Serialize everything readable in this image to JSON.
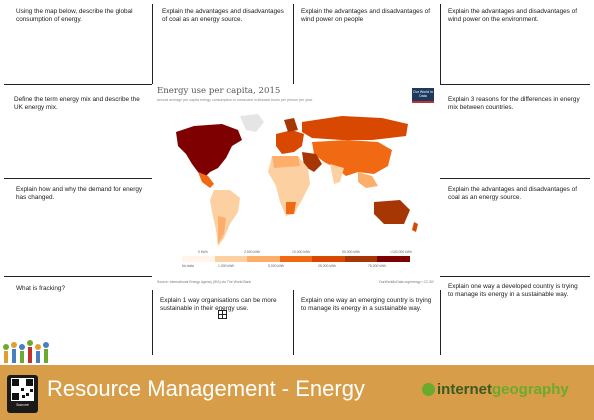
{
  "questions": {
    "q1": "Using the map below, describe the global consumption of energy.",
    "q2": "Explain the advantages and disadvantages of coal as an energy source.",
    "q3": "Explain the advantages and disadvantages of wind power on people",
    "q4": "Explain the advantages and disadvantages of wind power on the environment.",
    "q5": "Define the term energy mix and describe the UK energy mix.",
    "q6": "Explain 3 reasons for the differences in energy mix between countries.",
    "q7": "Explain how and why the demand for energy has changed.",
    "q8": "Explain the advantages and disadvantages of coal as an energy source.",
    "q9": "What is fracking?",
    "q10": "Explain 1 way organisations can be more sustainable in their energy use.",
    "q11": "Explain one way an emerging country is trying to manage its energy in a sustainable way.",
    "q12": "Explain one way a developed country is trying to manage its energy in a sustainable way."
  },
  "map": {
    "title": "Energy use per capita, 2015",
    "subtitle": "Annual average per capita energy consumption is measured in kilowatt-hours per person per year.",
    "logo": "Our World in Data",
    "legend_top": [
      "0 kWh",
      "2,500 kWh",
      "10,000 kWh",
      "50,000 kWh",
      ">100,000 kWh"
    ],
    "legend_bottom": [
      "No data",
      "1,000 kWh",
      "5,000 kWh",
      "25,000 kWh",
      "75,000 kWh"
    ],
    "legend_colors": [
      "#fff5eb",
      "#fdd0a2",
      "#fdae6b",
      "#f16913",
      "#d94801",
      "#a63603",
      "#7f0000"
    ],
    "source_left": "Source: International Energy Agency (IEA) via The World Bank",
    "source_right": "OurWorldInData.org/energy • CC BY"
  },
  "footer": {
    "title": "Resource Management - Energy",
    "brand_a": "internet",
    "brand_b": "geography",
    "qr_caption": "Scan me"
  }
}
